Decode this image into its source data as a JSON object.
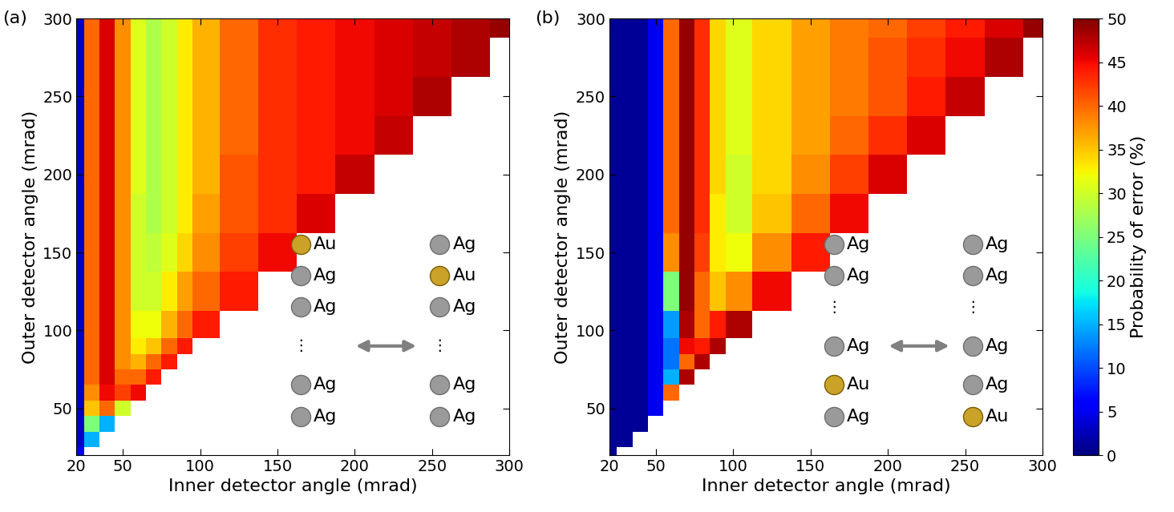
{
  "chart_data": [
    {
      "type": "heatmap",
      "panel_label": "(a)",
      "x_label": "Inner detector angle (mrad)",
      "y_label": "Outer detector angle (mrad)",
      "xlim": [
        20,
        300
      ],
      "ylim": [
        20,
        300
      ],
      "xticks": [
        20,
        50,
        100,
        150,
        200,
        250,
        300
      ],
      "yticks": [
        50,
        100,
        150,
        200,
        250,
        300
      ],
      "x": [
        20,
        30,
        40,
        50,
        60,
        70,
        80,
        90,
        100,
        125,
        150,
        175,
        200,
        225,
        250,
        275,
        300
      ],
      "y": [
        20,
        30,
        40,
        50,
        60,
        70,
        80,
        90,
        100,
        125,
        150,
        175,
        200,
        225,
        250,
        275,
        300
      ],
      "cells": [
        [
          5,
          null,
          null,
          null,
          null,
          null,
          null,
          null,
          null,
          null,
          null,
          null,
          null,
          null,
          null,
          null,
          null
        ],
        [
          3,
          15,
          null,
          null,
          null,
          null,
          null,
          null,
          null,
          null,
          null,
          null,
          null,
          null,
          null,
          null,
          null
        ],
        [
          3,
          25,
          15,
          null,
          null,
          null,
          null,
          null,
          null,
          null,
          null,
          null,
          null,
          null,
          null,
          null,
          null
        ],
        [
          3,
          35,
          40,
          30,
          null,
          null,
          null,
          null,
          null,
          null,
          null,
          null,
          null,
          null,
          null,
          null,
          null
        ],
        [
          3,
          38,
          45,
          42,
          45,
          null,
          null,
          null,
          null,
          null,
          null,
          null,
          null,
          null,
          null,
          null,
          null
        ],
        [
          3,
          40,
          46,
          40,
          40,
          44,
          null,
          null,
          null,
          null,
          null,
          null,
          null,
          null,
          null,
          null,
          null
        ],
        [
          3,
          40,
          46,
          38,
          36,
          40,
          44,
          null,
          null,
          null,
          null,
          null,
          null,
          null,
          null,
          null,
          null
        ],
        [
          3,
          40,
          46,
          38,
          33,
          35,
          40,
          44,
          null,
          null,
          null,
          null,
          null,
          null,
          null,
          null,
          null
        ],
        [
          3,
          40,
          46,
          38,
          32,
          32,
          36,
          40,
          44,
          null,
          null,
          null,
          null,
          null,
          null,
          null,
          null
        ],
        [
          3,
          40,
          46,
          38,
          30,
          30,
          33,
          37,
          40,
          44,
          null,
          null,
          null,
          null,
          null,
          null,
          null
        ],
        [
          3,
          40,
          46,
          38,
          30,
          29,
          31,
          34,
          38,
          42,
          45,
          null,
          null,
          null,
          null,
          null,
          null
        ],
        [
          3,
          40,
          46,
          38,
          30,
          28,
          30,
          33,
          37,
          41,
          43,
          46,
          null,
          null,
          null,
          null,
          null
        ],
        [
          3,
          40,
          46,
          38,
          31,
          28,
          30,
          33,
          36,
          41,
          43,
          44,
          47,
          null,
          null,
          null,
          null
        ],
        [
          3,
          40,
          46,
          38,
          31,
          28,
          30,
          33,
          36,
          40,
          43,
          44,
          45,
          47,
          null,
          null,
          null
        ],
        [
          3,
          40,
          46,
          38,
          31,
          28,
          30,
          33,
          36,
          40,
          43,
          44,
          45,
          46,
          48,
          null,
          null
        ],
        [
          3,
          40,
          46,
          38,
          31,
          28,
          30,
          33,
          36,
          40,
          43,
          44,
          45,
          46,
          47,
          48,
          null
        ],
        [
          3,
          40,
          46,
          38,
          31,
          28,
          30,
          33,
          36,
          40,
          43,
          44,
          45,
          46,
          47,
          48,
          49
        ]
      ],
      "columns": [
        [
          "Au",
          "Ag",
          "Ag",
          "⋮",
          "Ag",
          "Ag"
        ],
        [
          "Ag",
          "Au",
          "Ag",
          "⋮",
          "Ag",
          "Ag"
        ]
      ]
    },
    {
      "type": "heatmap",
      "panel_label": "(b)",
      "x_label": "Inner detector angle (mrad)",
      "y_label": "Outer detector angle (mrad)",
      "xlim": [
        20,
        300
      ],
      "ylim": [
        20,
        300
      ],
      "xticks": [
        20,
        50,
        100,
        150,
        200,
        250,
        300
      ],
      "yticks": [
        50,
        100,
        150,
        200,
        250,
        300
      ],
      "x": [
        20,
        30,
        40,
        50,
        60,
        70,
        80,
        90,
        100,
        125,
        150,
        175,
        200,
        225,
        250,
        275,
        300
      ],
      "y": [
        20,
        30,
        40,
        50,
        60,
        70,
        80,
        90,
        100,
        125,
        150,
        175,
        200,
        225,
        250,
        275,
        300
      ],
      "cells": [
        [
          1,
          null,
          null,
          null,
          null,
          null,
          null,
          null,
          null,
          null,
          null,
          null,
          null,
          null,
          null,
          null,
          null
        ],
        [
          1,
          1,
          null,
          null,
          null,
          null,
          null,
          null,
          null,
          null,
          null,
          null,
          null,
          null,
          null,
          null,
          null
        ],
        [
          1,
          1,
          1,
          null,
          null,
          null,
          null,
          null,
          null,
          null,
          null,
          null,
          null,
          null,
          null,
          null,
          null
        ],
        [
          1,
          1,
          1,
          5,
          null,
          null,
          null,
          null,
          null,
          null,
          null,
          null,
          null,
          null,
          null,
          null,
          null
        ],
        [
          1,
          1,
          1,
          5,
          40,
          null,
          null,
          null,
          null,
          null,
          null,
          null,
          null,
          null,
          null,
          null,
          null
        ],
        [
          1,
          1,
          1,
          5,
          15,
          48,
          null,
          null,
          null,
          null,
          null,
          null,
          null,
          null,
          null,
          null,
          null
        ],
        [
          1,
          1,
          1,
          5,
          12,
          40,
          48,
          null,
          null,
          null,
          null,
          null,
          null,
          null,
          null,
          null,
          null
        ],
        [
          1,
          1,
          1,
          5,
          12,
          45,
          44,
          48,
          null,
          null,
          null,
          null,
          null,
          null,
          null,
          null,
          null
        ],
        [
          1,
          1,
          1,
          5,
          14,
          48,
          40,
          44,
          48,
          null,
          null,
          null,
          null,
          null,
          null,
          null,
          null
        ],
        [
          1,
          1,
          1,
          5,
          25,
          49,
          40,
          35,
          38,
          45,
          null,
          null,
          null,
          null,
          null,
          null,
          null
        ],
        [
          1,
          1,
          1,
          5,
          38,
          49,
          42,
          33,
          32,
          38,
          44,
          null,
          null,
          null,
          null,
          null,
          null
        ],
        [
          1,
          1,
          1,
          5,
          40,
          49,
          43,
          33,
          30,
          35,
          40,
          45,
          null,
          null,
          null,
          null,
          null
        ],
        [
          1,
          1,
          1,
          5,
          40,
          49,
          43,
          34,
          30,
          34,
          38,
          42,
          46,
          null,
          null,
          null,
          null
        ],
        [
          1,
          1,
          1,
          5,
          40,
          49,
          43,
          34,
          31,
          34,
          37,
          40,
          43,
          46,
          null,
          null,
          null
        ],
        [
          1,
          1,
          1,
          5,
          40,
          49,
          43,
          34,
          31,
          34,
          37,
          39,
          41,
          44,
          47,
          null,
          null
        ],
        [
          1,
          1,
          1,
          5,
          40,
          49,
          43,
          34,
          31,
          34,
          37,
          39,
          41,
          43,
          45,
          48,
          null
        ],
        [
          1,
          1,
          1,
          5,
          40,
          49,
          43,
          34,
          31,
          34,
          37,
          39,
          40,
          42,
          44,
          46,
          49
        ]
      ],
      "columns": [
        [
          "Ag",
          "Ag",
          "⋮",
          "Ag",
          "Au",
          "Ag"
        ],
        [
          "Ag",
          "Ag",
          "⋮",
          "Ag",
          "Ag",
          "Au"
        ]
      ],
      "colorbar": {
        "label": "Probability of error (%)",
        "range": [
          0,
          50
        ],
        "ticks": [
          0,
          5,
          10,
          15,
          20,
          25,
          30,
          35,
          40,
          45,
          50
        ]
      }
    }
  ]
}
